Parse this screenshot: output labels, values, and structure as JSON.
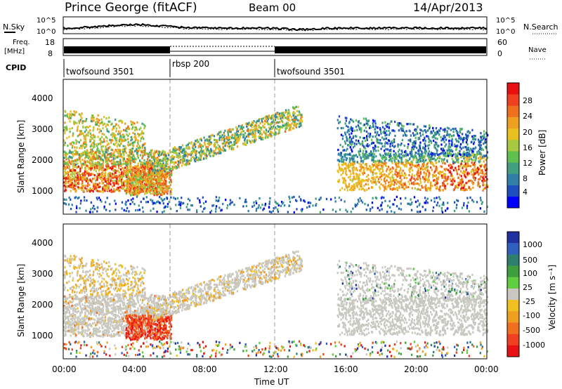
{
  "header": {
    "station": "Prince George (fitACF)",
    "beam": "Beam 00",
    "date": "14/Apr/2013"
  },
  "noise_panel": {
    "left_label": "N.Sky",
    "right_label": "N.Search",
    "tick_top": "10^5",
    "tick_bottom": "10^0"
  },
  "freq_panel": {
    "left_label_1": "Freq.",
    "left_label_2": "[MHz]",
    "left_tick_top": "18",
    "left_tick_bottom": "8",
    "right_label": "Nave",
    "right_tick_top": "60",
    "right_tick_bottom": "0"
  },
  "cpid_panel": {
    "label": "CPID",
    "segments": [
      {
        "name": "twofsound 3501",
        "start_h": 0,
        "end_h": 6
      },
      {
        "name": "rbsp 200",
        "start_h": 6,
        "end_h": 12
      },
      {
        "name": "twofsound 3501",
        "start_h": 12,
        "end_h": 24
      }
    ]
  },
  "x_axis": {
    "label": "Time UT",
    "ticks": [
      "00:00",
      "04:00",
      "08:00",
      "12:00",
      "16:00",
      "20:00",
      "00:00"
    ]
  },
  "power_panel": {
    "ylabel": "Slant Range [km]",
    "yticks": [
      "1000",
      "2000",
      "3000",
      "4000"
    ],
    "colorbar_label": "Power [dB]",
    "colorbar_ticks": [
      "4",
      "8",
      "12",
      "16",
      "20",
      "24",
      "28"
    ],
    "colors": [
      "#0000ff",
      "#1f4fbf",
      "#2f7fa8",
      "#3f9f7f",
      "#5fbf4f",
      "#a8c83f",
      "#e8c020",
      "#f0a020",
      "#f07020",
      "#f04020",
      "#e81010"
    ]
  },
  "velocity_panel": {
    "ylabel": "Slant Range [km]",
    "yticks": [
      "1000",
      "2000",
      "3000",
      "4000"
    ],
    "colorbar_label": "Velocity [m s⁻¹]",
    "colorbar_ticks": [
      "1000",
      "500",
      "100",
      "25",
      "-25",
      "-100",
      "-500",
      "-1000"
    ],
    "colors": [
      "#2030a0",
      "#2f5fbf",
      "#2f7f6f",
      "#3f9f3f",
      "#5fcf3f",
      "#c8c8c0",
      "#f0c020",
      "#f0a020",
      "#f07020",
      "#f04020",
      "#e81010"
    ]
  },
  "chart_data": {
    "type": "heatmap",
    "x_range_hours": [
      0,
      24
    ],
    "y_range_km": [
      180,
      4500
    ],
    "scatter_regions": [
      {
        "description_ref": "power",
        "start_h": 0,
        "end_h": 6,
        "range_km": [
          900,
          2200
        ],
        "power_db": 26
      },
      {
        "description_ref": "power",
        "start_h": 0,
        "end_h": 4.5,
        "range_km": [
          2200,
          3500
        ],
        "power_db": 16
      },
      {
        "description_ref": "power",
        "start_h": 5,
        "end_h": 13.5,
        "range_km": [
          1800,
          3500
        ],
        "power_db": 14
      },
      {
        "description_ref": "power",
        "start_h": 15.5,
        "end_h": 24,
        "range_km": [
          900,
          2200
        ],
        "power_db": 24
      },
      {
        "description_ref": "power",
        "start_h": 15.5,
        "end_h": 24,
        "range_km": [
          2200,
          3300
        ],
        "power_db": 8
      }
    ]
  }
}
